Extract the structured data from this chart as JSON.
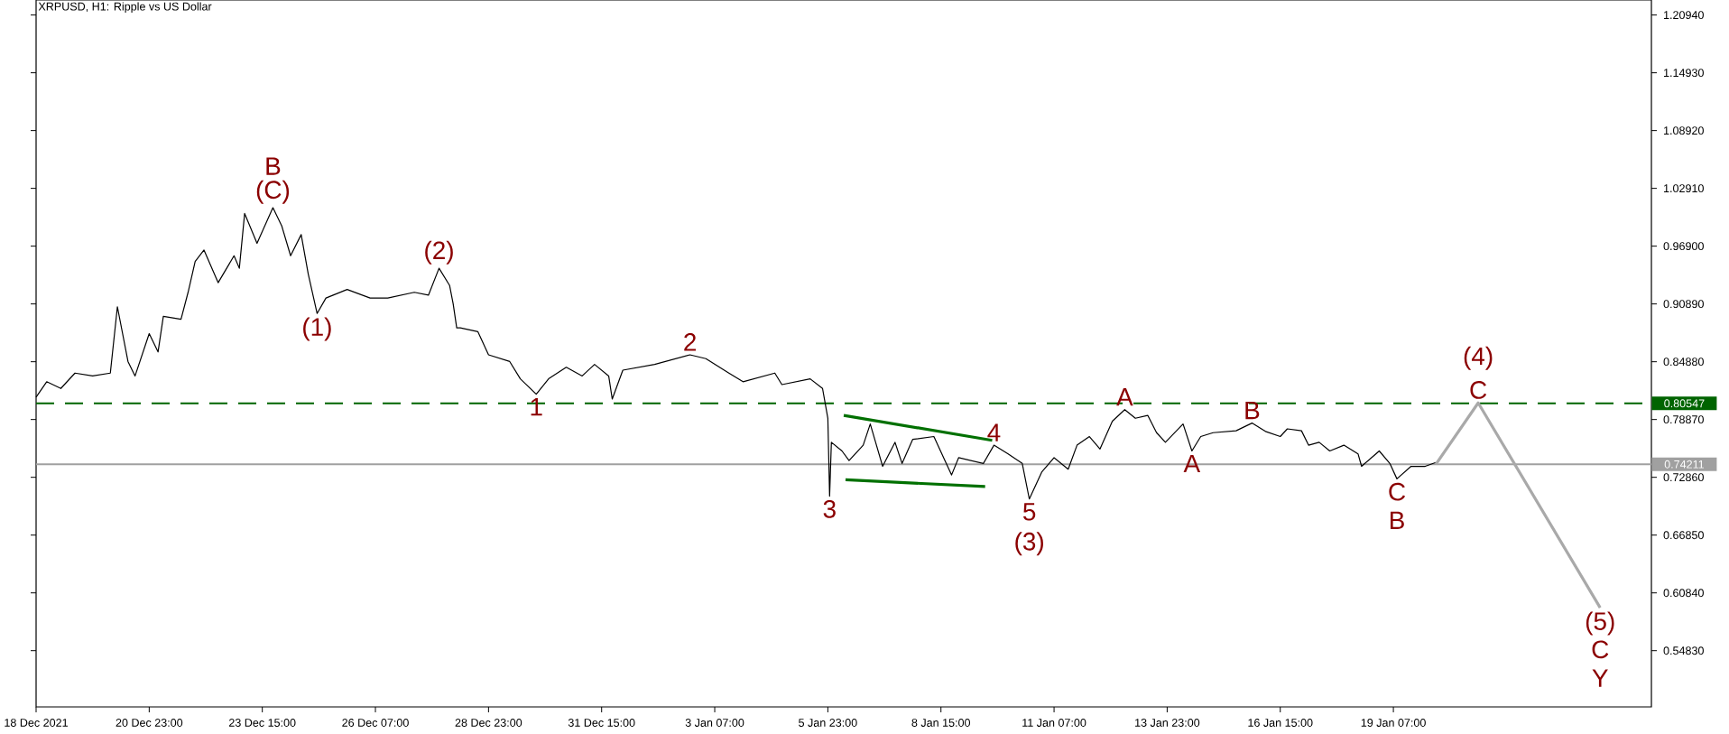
{
  "chart_data": {
    "type": "line",
    "title": "XRPUSD, H1:  Ripple vs US Dollar",
    "xlim": [
      "2021-12-18T07:00",
      "2022-01-25T09:00"
    ],
    "ylim": [
      0.4898,
      1.225
    ],
    "xticks": [
      {
        "value": "2021-12-18T07:00",
        "label": "18 Dec 2021"
      },
      {
        "value": "2021-12-20T23:00",
        "label": "20 Dec 23:00"
      },
      {
        "value": "2021-12-23T15:00",
        "label": "23 Dec 15:00"
      },
      {
        "value": "2021-12-26T07:00",
        "label": "26 Dec 07:00"
      },
      {
        "value": "2021-12-28T23:00",
        "label": "28 Dec 23:00"
      },
      {
        "value": "2021-12-31T15:00",
        "label": "31 Dec 15:00"
      },
      {
        "value": "2022-01-03T07:00",
        "label": "3 Jan 07:00"
      },
      {
        "value": "2022-01-05T23:00",
        "label": "5 Jan 23:00"
      },
      {
        "value": "2022-01-08T15:00",
        "label": "8 Jan 15:00"
      },
      {
        "value": "2022-01-11T07:00",
        "label": "11 Jan 07:00"
      },
      {
        "value": "2022-01-13T23:00",
        "label": "13 Jan 23:00"
      },
      {
        "value": "2022-01-16T15:00",
        "label": "16 Jan 15:00"
      },
      {
        "value": "2022-01-19T07:00",
        "label": "19 Jan 07:00"
      }
    ],
    "yticks": [
      {
        "value": 1.2094,
        "label": "1.20940"
      },
      {
        "value": 1.1493,
        "label": "1.14930"
      },
      {
        "value": 1.0892,
        "label": "1.08920"
      },
      {
        "value": 1.0291,
        "label": "1.02910"
      },
      {
        "value": 0.969,
        "label": "0.96900"
      },
      {
        "value": 0.9089,
        "label": "0.90890"
      },
      {
        "value": 0.8488,
        "label": "0.84880"
      },
      {
        "value": 0.7887,
        "label": "0.78870"
      },
      {
        "value": 0.7286,
        "label": "0.72860"
      },
      {
        "value": 0.6685,
        "label": "0.66850"
      },
      {
        "value": 0.6084,
        "label": "0.60840"
      },
      {
        "value": 0.5483,
        "label": "0.54830"
      }
    ],
    "series": [
      {
        "color": "#000000",
        "x": [
          "2021-12-18T07:00",
          "2021-12-18T13:00",
          "2021-12-18T21:00",
          "2021-12-19T05:00",
          "2021-12-19T15:00",
          "2021-12-20T01:00",
          "2021-12-20T05:00",
          "2021-12-20T11:00",
          "2021-12-20T15:00",
          "2021-12-20T23:00",
          "2021-12-21T04:00",
          "2021-12-21T07:00",
          "2021-12-21T17:00",
          "2021-12-21T21:00",
          "2021-12-22T01:00",
          "2021-12-22T06:00",
          "2021-12-22T14:00",
          "2021-12-22T23:00",
          "2021-12-23T02:00",
          "2021-12-23T05:00",
          "2021-12-23T12:00",
          "2021-12-23T21:00",
          "2021-12-24T02:00",
          "2021-12-24T07:00",
          "2021-12-24T13:00",
          "2021-12-24T17:00",
          "2021-12-24T22:00",
          "2021-12-25T03:00",
          "2021-12-25T15:00",
          "2021-12-26T04:00",
          "2021-12-26T14:00",
          "2021-12-27T05:00",
          "2021-12-27T13:00",
          "2021-12-27T19:00",
          "2021-12-28T01:00",
          "2021-12-28T03:00",
          "2021-12-28T05:00",
          "2021-12-28T07:00",
          "2021-12-28T17:00",
          "2021-12-28T23:00",
          "2021-12-29T11:00",
          "2021-12-29T17:00",
          "2021-12-30T02:00",
          "2021-12-30T09:00",
          "2021-12-30T19:00",
          "2021-12-31T04:00",
          "2021-12-31T11:00",
          "2021-12-31T19:00",
          "2021-12-31T21:00",
          "2022-01-01T03:00",
          "2022-01-01T21:00",
          "2022-01-02T17:00",
          "2022-01-03T02:00",
          "2022-01-03T15:00",
          "2022-01-03T23:00",
          "2022-01-04T17:00",
          "2022-01-04T21:00",
          "2022-01-05T13:00",
          "2022-01-05T20:00",
          "2022-01-05T23:00",
          "2022-01-06T00:00",
          "2022-01-06T01:00",
          "2022-01-06T07:00",
          "2022-01-06T11:00",
          "2022-01-06T19:00",
          "2022-01-06T23:00",
          "2022-01-07T06:00",
          "2022-01-07T13:00",
          "2022-01-07T17:00",
          "2022-01-07T23:00",
          "2022-01-08T11:00",
          "2022-01-08T21:00",
          "2022-01-09T01:00",
          "2022-01-09T15:00",
          "2022-01-09T21:00",
          "2022-01-10T05:00",
          "2022-01-10T13:00",
          "2022-01-10T17:00",
          "2022-01-11T00:00",
          "2022-01-11T07:00",
          "2022-01-11T15:00",
          "2022-01-11T20:00",
          "2022-01-12T03:00",
          "2022-01-12T09:00",
          "2022-01-12T16:00",
          "2022-01-12T23:00",
          "2022-01-13T05:00",
          "2022-01-13T12:00",
          "2022-01-13T17:00",
          "2022-01-13T22:00",
          "2022-01-14T08:00",
          "2022-01-14T13:00",
          "2022-01-14T18:00",
          "2022-01-15T01:00",
          "2022-01-15T14:00",
          "2022-01-15T23:00",
          "2022-01-16T07:00",
          "2022-01-16T15:00",
          "2022-01-16T19:00",
          "2022-01-17T03:00",
          "2022-01-17T07:00",
          "2022-01-17T13:00",
          "2022-01-17T19:00",
          "2022-01-18T03:00",
          "2022-01-18T11:00",
          "2022-01-18T13:00",
          "2022-01-18T23:00",
          "2022-01-19T05:00",
          "2022-01-19T09:00",
          "2022-01-19T17:00",
          "2022-01-20T01:00",
          "2022-01-20T07:00"
        ],
        "values": [
          0.812,
          0.828,
          0.821,
          0.837,
          0.834,
          0.837,
          0.906,
          0.849,
          0.834,
          0.878,
          0.859,
          0.896,
          0.893,
          0.921,
          0.953,
          0.965,
          0.931,
          0.959,
          0.946,
          1.003,
          0.972,
          1.009,
          0.99,
          0.959,
          0.981,
          0.94,
          0.899,
          0.915,
          0.924,
          0.915,
          0.915,
          0.921,
          0.918,
          0.946,
          0.928,
          0.909,
          0.884,
          0.884,
          0.88,
          0.856,
          0.849,
          0.831,
          0.815,
          0.831,
          0.843,
          0.834,
          0.846,
          0.834,
          0.81,
          0.84,
          0.846,
          0.856,
          0.852,
          0.837,
          0.828,
          0.837,
          0.825,
          0.831,
          0.821,
          0.79,
          0.709,
          0.765,
          0.756,
          0.746,
          0.762,
          0.784,
          0.74,
          0.765,
          0.743,
          0.768,
          0.771,
          0.731,
          0.749,
          0.743,
          0.762,
          0.753,
          0.743,
          0.706,
          0.734,
          0.749,
          0.737,
          0.762,
          0.771,
          0.758,
          0.787,
          0.799,
          0.79,
          0.793,
          0.775,
          0.765,
          0.784,
          0.756,
          0.771,
          0.775,
          0.777,
          0.785,
          0.776,
          0.771,
          0.779,
          0.777,
          0.762,
          0.765,
          0.756,
          0.762,
          0.753,
          0.74,
          0.756,
          0.743,
          0.727,
          0.74,
          0.74,
          0.744
        ]
      },
      {
        "color": "#a9a9a9",
        "x": [
          "2022-01-20T07:00",
          "2022-01-21T07:00",
          "2022-01-24T04:00"
        ],
        "values": [
          0.742,
          0.806,
          0.593
        ]
      },
      {
        "color": "#007000",
        "x": [
          "2022-01-06T08:00",
          "2022-01-09T20:00"
        ],
        "values": [
          0.793,
          0.767
        ]
      },
      {
        "color": "#007000",
        "x": [
          "2022-01-06T09:00",
          "2022-01-09T16:00"
        ],
        "values": [
          0.726,
          0.719
        ]
      }
    ],
    "ref_lines": [
      {
        "axis": "y",
        "value": 0.80547,
        "label": "0.80547",
        "color": "#006400",
        "line_style": "dashed"
      },
      {
        "axis": "y",
        "value": 0.74211,
        "label": "0.74211",
        "color": "#a0a0a0",
        "line_style": "solid"
      }
    ],
    "annotations": [
      {
        "text": "(C)",
        "x": "2021-12-23T21:00",
        "y": 1.009
      },
      {
        "text": "B",
        "x": "2021-12-23T21:00",
        "y": 1.009
      },
      {
        "text": "(1)",
        "x": "2021-12-24T22:00",
        "y": 0.899
      },
      {
        "text": "(2)",
        "x": "2021-12-27T19:00",
        "y": 0.946
      },
      {
        "text": "1",
        "x": "2021-12-30T02:00",
        "y": 0.815
      },
      {
        "text": "2",
        "x": "2022-01-02T17:00",
        "y": 0.856
      },
      {
        "text": "3",
        "x": "2022-01-06T00:00",
        "y": 0.709
      },
      {
        "text": "4",
        "x": "2022-01-09T21:00",
        "y": 0.762
      },
      {
        "text": "5",
        "x": "2022-01-10T17:00",
        "y": 0.706
      },
      {
        "text": "(3)",
        "x": "2022-01-10T17:00",
        "y": 0.706
      },
      {
        "text": "A",
        "x": "2022-01-12T23:00",
        "y": 0.799
      },
      {
        "text": "A",
        "x": "2022-01-14T13:00",
        "y": 0.756
      },
      {
        "text": "B",
        "x": "2022-01-15T23:00",
        "y": 0.785
      },
      {
        "text": "C",
        "x": "2022-01-19T09:00",
        "y": 0.727
      },
      {
        "text": "B",
        "x": "2022-01-19T09:00",
        "y": 0.727
      },
      {
        "text": "C",
        "x": "2022-01-21T07:00",
        "y": 0.806
      },
      {
        "text": "(4)",
        "x": "2022-01-21T07:00",
        "y": 0.806
      },
      {
        "text": "(5)",
        "x": "2022-01-24T04:00",
        "y": 0.593
      },
      {
        "text": "C",
        "x": "2022-01-24T04:00",
        "y": 0.593
      },
      {
        "text": "Y",
        "x": "2022-01-24T04:00",
        "y": 0.593
      }
    ]
  }
}
